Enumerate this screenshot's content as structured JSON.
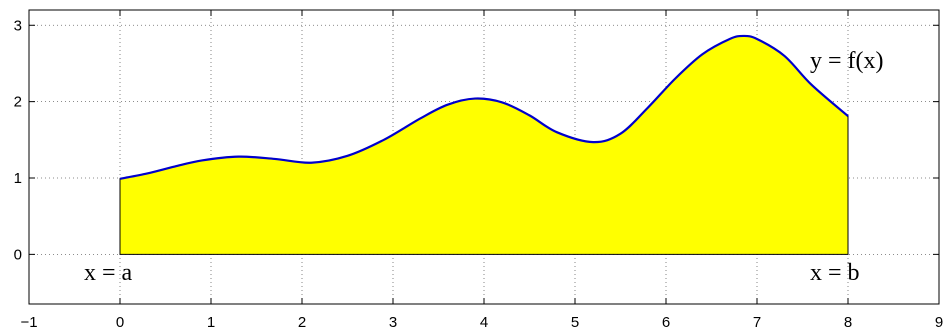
{
  "chart_data": {
    "type": "area",
    "xlim": [
      -1,
      9
    ],
    "ylim": [
      -0.65,
      3.2
    ],
    "xticks": [
      -1,
      0,
      1,
      2,
      3,
      4,
      5,
      6,
      7,
      8,
      9
    ],
    "yticks": [
      0,
      1,
      2,
      3
    ],
    "xtick_labels": [
      "−1",
      "0",
      "1",
      "2",
      "3",
      "4",
      "5",
      "6",
      "7",
      "8",
      "9"
    ],
    "ytick_labels": [
      "0",
      "1",
      "2",
      "3"
    ],
    "grid": true,
    "fill_color": "#ffff00",
    "line_color": "#0000cc",
    "series": [
      {
        "x": [
          0,
          0.3,
          0.6,
          0.9,
          1.3,
          1.7,
          2.1,
          2.5,
          2.9,
          3.3,
          3.6,
          3.9,
          4.2,
          4.5,
          4.8,
          5.2,
          5.5,
          5.8,
          6.1,
          6.4,
          6.7,
          6.85,
          7.0,
          7.3,
          7.6,
          8.0
        ],
        "y": [
          0.99,
          1.06,
          1.15,
          1.23,
          1.28,
          1.25,
          1.2,
          1.29,
          1.5,
          1.78,
          1.96,
          2.04,
          1.99,
          1.82,
          1.6,
          1.47,
          1.58,
          1.92,
          2.3,
          2.62,
          2.82,
          2.86,
          2.82,
          2.6,
          2.22,
          1.81
        ]
      }
    ],
    "annotations": {
      "curve": "y = f(x)",
      "left_bound": "x = a",
      "right_bound": "x = b"
    }
  }
}
